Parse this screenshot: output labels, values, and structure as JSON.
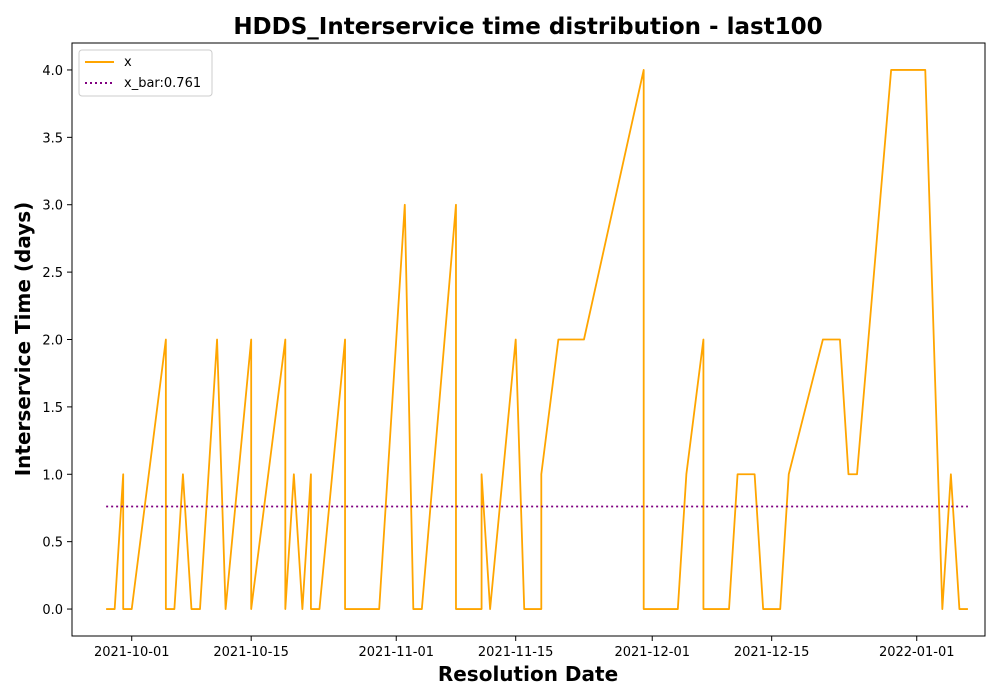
{
  "chart_data": {
    "type": "line",
    "title": "HDDS_Interservice time distribution - last100",
    "xlabel": "Resolution Date",
    "ylabel": "Interservice Time (days)",
    "xlim": [
      "2021-09-24",
      "2022-01-09"
    ],
    "ylim": [
      -0.2,
      4.2
    ],
    "grid": false,
    "legend_position": "top-left",
    "x_ticks": [
      "2021-10-01",
      "2021-10-15",
      "2021-11-01",
      "2021-11-15",
      "2021-12-01",
      "2021-12-15",
      "2022-01-01"
    ],
    "y_ticks": [
      0.0,
      0.5,
      1.0,
      1.5,
      2.0,
      2.5,
      3.0,
      3.5,
      4.0
    ],
    "series": [
      {
        "name": "x",
        "color": "#ffa500",
        "style": "solid",
        "x": [
          "2021-09-28",
          "2021-09-29",
          "2021-09-30",
          "2021-09-30",
          "2021-10-01",
          "2021-10-01",
          "2021-10-05",
          "2021-10-05",
          "2021-10-06",
          "2021-10-07",
          "2021-10-08",
          "2021-10-08",
          "2021-10-09",
          "2021-10-11",
          "2021-10-12",
          "2021-10-12",
          "2021-10-15",
          "2021-10-15",
          "2021-10-15",
          "2021-10-19",
          "2021-10-19",
          "2021-10-20",
          "2021-10-21",
          "2021-10-22",
          "2021-10-22",
          "2021-10-23",
          "2021-10-26",
          "2021-10-26",
          "2021-10-26",
          "2021-10-30",
          "2021-11-02",
          "2021-11-03",
          "2021-11-04",
          "2021-11-08",
          "2021-11-08",
          "2021-11-10",
          "2021-11-11",
          "2021-11-11",
          "2021-11-12",
          "2021-11-15",
          "2021-11-16",
          "2021-11-18",
          "2021-11-18",
          "2021-11-20",
          "2021-11-23",
          "2021-11-30",
          "2021-11-30",
          "2021-12-04",
          "2021-12-05",
          "2021-12-07",
          "2021-12-07",
          "2021-12-10",
          "2021-12-11",
          "2021-12-13",
          "2021-12-14",
          "2021-12-16",
          "2021-12-17",
          "2021-12-21",
          "2021-12-23",
          "2021-12-24",
          "2021-12-25",
          "2021-12-29",
          "2022-01-02",
          "2022-01-04",
          "2022-01-05",
          "2022-01-06",
          "2022-01-06",
          "2022-01-07"
        ],
        "y": [
          0,
          0,
          1,
          0,
          0,
          0,
          2,
          0,
          0,
          1,
          0,
          0,
          0,
          2,
          0,
          0,
          2,
          0,
          0,
          2,
          0,
          1,
          0,
          1,
          0,
          0,
          2,
          0,
          0,
          0,
          3,
          0,
          0,
          3,
          0,
          0,
          0,
          1,
          0,
          2,
          0,
          0,
          1,
          2,
          2,
          4,
          0,
          0,
          1,
          2,
          0,
          0,
          1,
          1,
          0,
          0,
          1,
          2,
          2,
          1,
          1,
          4,
          4,
          0,
          1,
          0,
          0,
          0
        ]
      },
      {
        "name": "x_bar:0.761",
        "color": "#800080",
        "style": "dotted",
        "x": [
          "2021-09-28",
          "2022-01-07"
        ],
        "y": [
          0.761,
          0.761
        ]
      }
    ]
  }
}
